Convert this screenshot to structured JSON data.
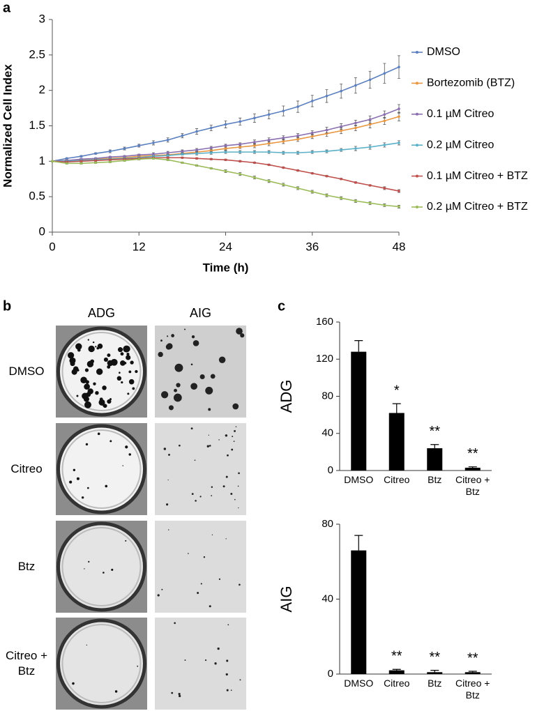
{
  "chart_data": [
    {
      "type": "line",
      "panel_label": "a",
      "xlabel": "Time (h)",
      "ylabel": "Normalized Cell Index",
      "x": [
        0,
        2,
        4,
        6,
        8,
        10,
        12,
        14,
        16,
        18,
        20,
        22,
        24,
        26,
        28,
        30,
        32,
        34,
        36,
        38,
        40,
        42,
        44,
        46,
        48
      ],
      "xlim": [
        0,
        48
      ],
      "xticks": [
        0,
        12,
        24,
        36,
        48
      ],
      "ylim": [
        0,
        3
      ],
      "yticks": [
        0,
        0.5,
        1,
        1.5,
        2,
        2.5,
        3
      ],
      "legend": "right",
      "series": [
        {
          "name": "DMSO",
          "color": "#5b7fbf",
          "values": [
            1.0,
            1.04,
            1.07,
            1.11,
            1.14,
            1.18,
            1.22,
            1.26,
            1.3,
            1.36,
            1.42,
            1.47,
            1.52,
            1.56,
            1.61,
            1.66,
            1.71,
            1.77,
            1.85,
            1.92,
            1.99,
            2.07,
            2.15,
            2.24,
            2.33
          ],
          "errors": [
            0.0,
            0.01,
            0.01,
            0.01,
            0.02,
            0.02,
            0.02,
            0.03,
            0.03,
            0.03,
            0.04,
            0.04,
            0.05,
            0.05,
            0.06,
            0.06,
            0.07,
            0.08,
            0.08,
            0.09,
            0.1,
            0.11,
            0.12,
            0.14,
            0.16
          ]
        },
        {
          "name": "Bortezomib (BTZ)",
          "color": "#e8963f",
          "values": [
            1.0,
            1.01,
            1.02,
            1.03,
            1.04,
            1.05,
            1.07,
            1.08,
            1.09,
            1.11,
            1.13,
            1.15,
            1.18,
            1.2,
            1.22,
            1.25,
            1.28,
            1.31,
            1.35,
            1.39,
            1.43,
            1.47,
            1.52,
            1.57,
            1.63
          ],
          "errors": [
            0.0,
            0.01,
            0.01,
            0.01,
            0.01,
            0.01,
            0.01,
            0.02,
            0.02,
            0.02,
            0.02,
            0.02,
            0.02,
            0.02,
            0.03,
            0.03,
            0.03,
            0.03,
            0.03,
            0.04,
            0.04,
            0.04,
            0.05,
            0.05,
            0.06
          ]
        },
        {
          "name": "0.1 µM Citreo",
          "color": "#8a6fb0",
          "values": [
            1.0,
            1.01,
            1.03,
            1.04,
            1.06,
            1.07,
            1.09,
            1.1,
            1.12,
            1.14,
            1.16,
            1.19,
            1.22,
            1.24,
            1.27,
            1.3,
            1.33,
            1.36,
            1.4,
            1.44,
            1.49,
            1.54,
            1.59,
            1.66,
            1.74
          ],
          "errors": [
            0.0,
            0.01,
            0.01,
            0.01,
            0.01,
            0.01,
            0.01,
            0.02,
            0.02,
            0.02,
            0.02,
            0.02,
            0.02,
            0.02,
            0.03,
            0.03,
            0.03,
            0.03,
            0.03,
            0.04,
            0.04,
            0.04,
            0.05,
            0.05,
            0.06
          ]
        },
        {
          "name": "0.2 µM Citreo",
          "color": "#5ab0c8",
          "values": [
            1.0,
            1.0,
            1.01,
            1.02,
            1.03,
            1.04,
            1.05,
            1.07,
            1.08,
            1.1,
            1.11,
            1.12,
            1.13,
            1.13,
            1.13,
            1.13,
            1.12,
            1.12,
            1.13,
            1.14,
            1.16,
            1.18,
            1.2,
            1.23,
            1.26
          ],
          "errors": [
            0.0,
            0.01,
            0.01,
            0.01,
            0.01,
            0.01,
            0.01,
            0.01,
            0.01,
            0.01,
            0.02,
            0.02,
            0.02,
            0.02,
            0.02,
            0.02,
            0.02,
            0.02,
            0.02,
            0.02,
            0.02,
            0.03,
            0.03,
            0.03,
            0.03
          ]
        },
        {
          "name": "0.1 µM Citreo + BTZ",
          "color": "#c0504d",
          "values": [
            1.0,
            0.99,
            1.0,
            1.01,
            1.02,
            1.03,
            1.04,
            1.05,
            1.05,
            1.05,
            1.04,
            1.03,
            1.02,
            1.0,
            0.98,
            0.95,
            0.91,
            0.87,
            0.83,
            0.79,
            0.75,
            0.7,
            0.66,
            0.62,
            0.58
          ],
          "errors": [
            0.0,
            0.01,
            0.01,
            0.01,
            0.01,
            0.01,
            0.01,
            0.01,
            0.01,
            0.01,
            0.01,
            0.01,
            0.01,
            0.01,
            0.01,
            0.01,
            0.01,
            0.01,
            0.01,
            0.01,
            0.01,
            0.01,
            0.01,
            0.02,
            0.02
          ]
        },
        {
          "name": "0.2 µM Citreo + BTZ",
          "color": "#9bbb59",
          "values": [
            1.0,
            0.97,
            0.97,
            0.98,
            0.99,
            1.01,
            1.03,
            1.04,
            1.02,
            0.98,
            0.94,
            0.9,
            0.86,
            0.82,
            0.77,
            0.72,
            0.67,
            0.62,
            0.57,
            0.52,
            0.48,
            0.44,
            0.41,
            0.38,
            0.36
          ],
          "errors": [
            0.0,
            0.01,
            0.01,
            0.01,
            0.01,
            0.01,
            0.01,
            0.01,
            0.01,
            0.01,
            0.01,
            0.01,
            0.02,
            0.02,
            0.02,
            0.02,
            0.02,
            0.02,
            0.02,
            0.02,
            0.02,
            0.02,
            0.02,
            0.02,
            0.02
          ]
        }
      ]
    },
    {
      "type": "bar",
      "panel_label": "c",
      "ylabel": "ADG",
      "color": "#000000",
      "categories": [
        "DMSO",
        "Citreo",
        "Btz",
        "Citreo + Btz"
      ],
      "values": [
        128,
        62,
        24,
        3
      ],
      "errors": [
        12,
        10,
        4,
        1
      ],
      "annotations": [
        null,
        "*",
        "**",
        "**"
      ],
      "ylim": [
        0,
        160
      ],
      "yticks": [
        0,
        40,
        80,
        120,
        160
      ]
    },
    {
      "type": "bar",
      "ylabel": "AIG",
      "color": "#000000",
      "categories": [
        "DMSO",
        "Citreo",
        "Btz",
        "Citreo + Btz"
      ],
      "values": [
        66,
        2,
        1,
        1
      ],
      "errors": [
        8,
        0.5,
        1,
        0.5
      ],
      "annotations": [
        null,
        "**",
        "**",
        "**"
      ],
      "ylim": [
        0,
        80
      ],
      "yticks": [
        0,
        40,
        80
      ]
    }
  ],
  "panel_b": {
    "panel_label": "b",
    "columns": [
      "ADG",
      "AIG"
    ],
    "rows": [
      "DMSO",
      "Citreo",
      "Btz",
      "Citreo + Btz"
    ]
  }
}
